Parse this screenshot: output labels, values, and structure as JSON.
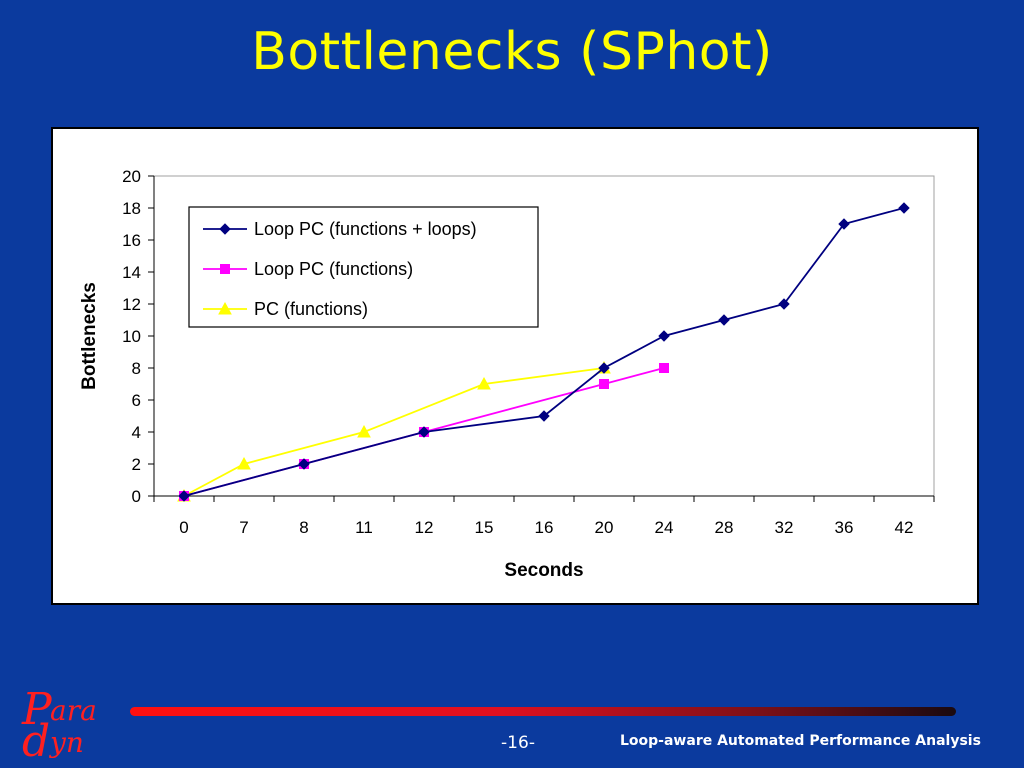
{
  "slide": {
    "title": "Bottlenecks (SPhot)",
    "page_number": "-16-",
    "footer_caption": "Loop-aware Automated Performance Analysis",
    "logo_text_top": "ara",
    "logo_text_bottom": "yn",
    "background_color": "#0b3a9e",
    "title_color": "#ffff00"
  },
  "chart_data": {
    "type": "line",
    "title": "",
    "xlabel": "Seconds",
    "ylabel": "Bottlenecks",
    "ylim": [
      0,
      20
    ],
    "yticks": [
      0,
      2,
      4,
      6,
      8,
      10,
      12,
      14,
      16,
      18,
      20
    ],
    "categories": [
      "0",
      "7",
      "8",
      "11",
      "12",
      "15",
      "16",
      "20",
      "24",
      "28",
      "32",
      "36",
      "42"
    ],
    "grid": false,
    "legend_position": "top-left-inside",
    "series": [
      {
        "name": "Loop PC (functions + loops)",
        "color": "#000080",
        "marker": "diamond",
        "points": [
          [
            0,
            0
          ],
          [
            2,
            2
          ],
          [
            4,
            4
          ],
          [
            6,
            5
          ],
          [
            7,
            8
          ],
          [
            8,
            10
          ],
          [
            9,
            11
          ],
          [
            10,
            12
          ],
          [
            11,
            17
          ],
          [
            12,
            18
          ]
        ]
      },
      {
        "name": "Loop PC (functions)",
        "color": "#ff00ff",
        "marker": "square",
        "points": [
          [
            0,
            0
          ],
          [
            2,
            2
          ],
          [
            4,
            4
          ],
          [
            7,
            7
          ],
          [
            8,
            8
          ]
        ]
      },
      {
        "name": "PC (functions)",
        "color": "#ffff00",
        "marker": "triangle",
        "points": [
          [
            0,
            0
          ],
          [
            1,
            2
          ],
          [
            3,
            4
          ],
          [
            5,
            7
          ],
          [
            7,
            8
          ]
        ]
      }
    ]
  }
}
